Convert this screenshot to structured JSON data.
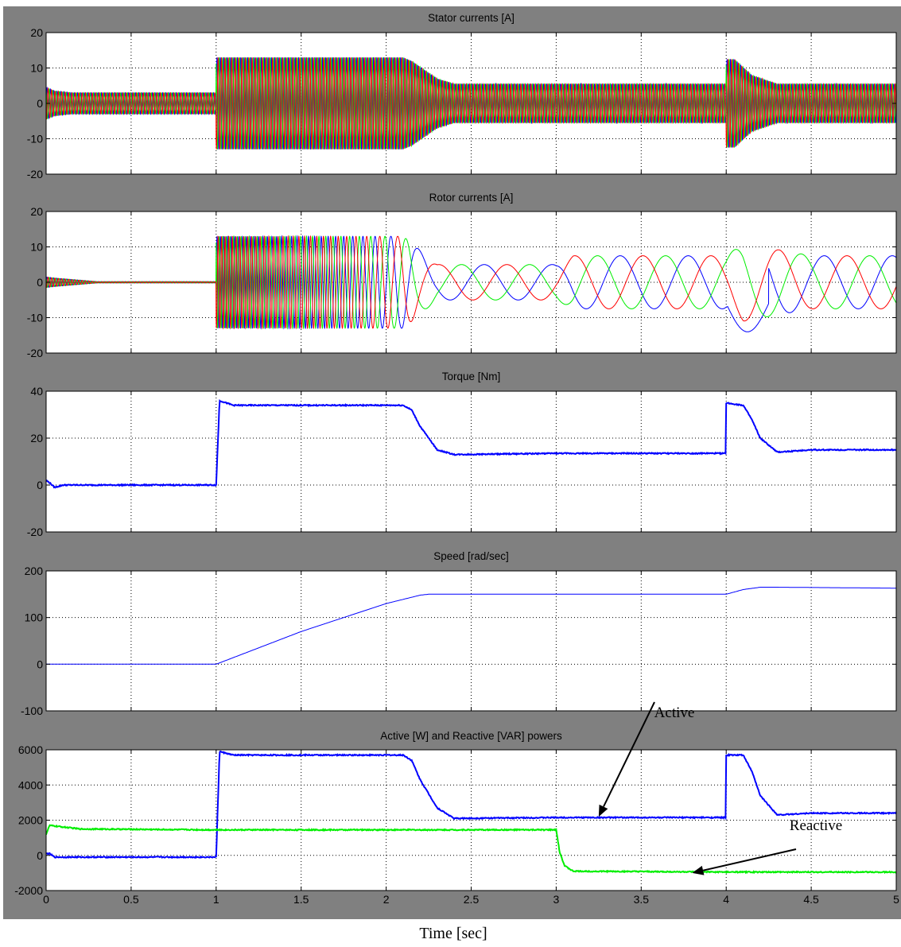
{
  "chart_data": [
    {
      "type": "line",
      "title": "Stator currents [A]",
      "xlim": [
        0,
        5
      ],
      "ylim": [
        -20,
        20
      ],
      "xticks": [
        0,
        0.5,
        1,
        1.5,
        2,
        2.5,
        3,
        3.5,
        4,
        4.5,
        5
      ],
      "yticks": [
        -20,
        -10,
        0,
        10,
        20
      ],
      "ytick_labels": [
        "-20",
        "-10",
        "0",
        "10",
        "20"
      ],
      "grid": true,
      "plot_kind": "oscillating",
      "series": [
        {
          "color": "#0000ff",
          "phase_deg": 0
        },
        {
          "color": "#00ee00",
          "phase_deg": 120
        },
        {
          "color": "#ff0000",
          "phase_deg": 240
        }
      ],
      "amplitude_envelope": {
        "x": [
          0,
          0.05,
          0.15,
          0.999,
          1.0,
          2.1,
          2.15,
          2.3,
          2.4,
          3.0,
          3.999,
          4.0,
          4.05,
          4.15,
          4.3,
          5.0
        ],
        "amplitude": [
          4.5,
          3.5,
          3,
          3,
          13,
          13,
          12,
          7,
          5.5,
          5.5,
          5.5,
          12.5,
          12.5,
          8,
          5.5,
          5.5
        ]
      },
      "frequency_hz": 50
    },
    {
      "type": "line",
      "title": "Rotor currents [A]",
      "xlim": [
        0,
        5
      ],
      "ylim": [
        -20,
        20
      ],
      "xticks": [
        0,
        0.5,
        1,
        1.5,
        2,
        2.5,
        3,
        3.5,
        4,
        4.5,
        5
      ],
      "yticks": [
        -20,
        -10,
        0,
        10,
        20
      ],
      "ytick_labels": [
        "-20",
        "-10",
        "0",
        "10",
        "20"
      ],
      "grid": true,
      "plot_kind": "oscillating",
      "series": [
        {
          "color": "#0000ff",
          "phase_deg": 0
        },
        {
          "color": "#00ee00",
          "phase_deg": 120
        },
        {
          "color": "#ff0000",
          "phase_deg": 240
        }
      ],
      "amplitude_envelope": {
        "x": [
          0,
          0.05,
          0.3,
          0.999,
          1.0,
          2.1,
          2.3,
          3.0,
          3.1,
          4.0,
          4.1,
          4.5,
          5.0
        ],
        "amplitude": [
          1.5,
          1.2,
          0.2,
          0.2,
          13,
          13,
          5,
          5,
          7.5,
          7.5,
          11,
          7.5,
          7.5
        ]
      },
      "frequency_envelope": {
        "x": [
          0,
          0.999,
          1.0,
          2.0,
          2.2,
          2.3,
          3.0,
          5.0
        ],
        "frequency_hz": [
          50,
          50,
          50,
          10,
          3,
          2.5,
          2.5,
          2.5
        ]
      }
    },
    {
      "type": "line",
      "title": "Torque [Nm]",
      "xlim": [
        0,
        5
      ],
      "ylim": [
        -20,
        40
      ],
      "xticks": [
        0,
        0.5,
        1,
        1.5,
        2,
        2.5,
        3,
        3.5,
        4,
        4.5,
        5
      ],
      "yticks": [
        -20,
        0,
        20,
        40
      ],
      "ytick_labels": [
        "-20",
        "0",
        "20",
        "40"
      ],
      "grid": true,
      "plot_kind": "line",
      "series": [
        {
          "color": "#0000ff",
          "x": [
            0,
            0.02,
            0.05,
            0.1,
            0.2,
            0.999,
            1.0,
            1.02,
            1.1,
            1.3,
            2.1,
            2.15,
            2.2,
            2.3,
            2.4,
            3.0,
            3.999,
            4.0,
            4.1,
            4.15,
            4.2,
            4.3,
            4.5,
            5.0
          ],
          "y": [
            2,
            1,
            -1,
            0,
            0,
            0,
            0,
            36,
            34,
            34,
            34,
            32,
            25,
            15,
            13,
            13.5,
            13.5,
            35,
            34,
            28,
            20,
            14,
            15,
            15
          ]
        }
      ]
    },
    {
      "type": "line",
      "title": "Speed [rad/sec]",
      "xlim": [
        0,
        5
      ],
      "ylim": [
        -100,
        200
      ],
      "xticks": [
        0,
        0.5,
        1,
        1.5,
        2,
        2.5,
        3,
        3.5,
        4,
        4.5,
        5
      ],
      "yticks": [
        -100,
        0,
        100,
        200
      ],
      "ytick_labels": [
        "-100",
        "0",
        "100",
        "200"
      ],
      "grid": true,
      "plot_kind": "line",
      "series": [
        {
          "color": "#0000ff",
          "x": [
            0,
            1.0,
            1.5,
            2.0,
            2.2,
            2.25,
            3.0,
            4.0,
            4.1,
            4.2,
            4.3,
            5.0
          ],
          "y": [
            0,
            0,
            70,
            130,
            148,
            150,
            150,
            150,
            160,
            165,
            165,
            163
          ]
        }
      ]
    },
    {
      "type": "line",
      "title": "Active [W] and Reactive [VAR] powers",
      "xlabel": "Time [sec]",
      "xlim": [
        0,
        5
      ],
      "ylim": [
        -2000,
        6000
      ],
      "xticks": [
        0,
        0.5,
        1,
        1.5,
        2,
        2.5,
        3,
        3.5,
        4,
        4.5,
        5
      ],
      "xtick_labels": [
        "0",
        "0.5",
        "1",
        "1.5",
        "2",
        "2.5",
        "3",
        "3.5",
        "4",
        "4.5",
        "5"
      ],
      "yticks": [
        -2000,
        0,
        2000,
        4000,
        6000
      ],
      "ytick_labels": [
        "-2000",
        "0",
        "2000",
        "4000",
        "6000"
      ],
      "grid": true,
      "plot_kind": "line",
      "series": [
        {
          "color": "#0000ff",
          "x": [
            0,
            0.02,
            0.05,
            0.2,
            0.999,
            1.0,
            1.02,
            1.1,
            2.1,
            2.15,
            2.2,
            2.3,
            2.4,
            3.0,
            3.999,
            4.0,
            4.1,
            4.15,
            4.2,
            4.3,
            4.5,
            5.0
          ],
          "y": [
            100,
            100,
            -100,
            -100,
            -100,
            -100,
            5900,
            5700,
            5700,
            5400,
            4300,
            2700,
            2100,
            2150,
            2150,
            5700,
            5700,
            4800,
            3400,
            2300,
            2400,
            2400
          ]
        },
        {
          "color": "#00ee00",
          "x": [
            0,
            0.02,
            0.2,
            1.0,
            3.0,
            3.02,
            3.05,
            3.1,
            4.0,
            5.0
          ],
          "y": [
            1200,
            1700,
            1500,
            1450,
            1450,
            200,
            -600,
            -900,
            -950,
            -950
          ]
        }
      ],
      "annotations": [
        {
          "text": "Active",
          "target_x": 3.25,
          "target_y": 2200
        },
        {
          "text": "Reactive",
          "target_x": 3.8,
          "target_y": -1000
        }
      ]
    }
  ]
}
